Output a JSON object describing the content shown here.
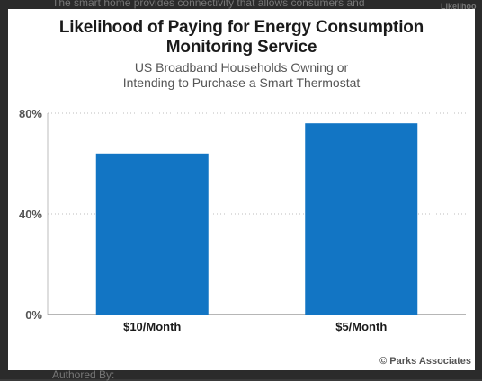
{
  "background": {
    "top_text": "The smart home provides connectivity that allows consumers and",
    "right_text": "Likelihoo",
    "bottom_text": "Authored By:"
  },
  "chart": {
    "title_line1": "Likelihood of Paying for Energy Consumption",
    "title_line2": "Monitoring Service",
    "subtitle_line1": "US Broadband Households Owning or",
    "subtitle_line2": "Intending to Purchase a Smart Thermostat",
    "credit": "© Parks Associates",
    "bar_color": "#1275c4"
  },
  "chart_data": {
    "type": "bar",
    "categories": [
      "$10/Month",
      "$5/Month"
    ],
    "values": [
      64,
      76
    ],
    "ylim": [
      0,
      80
    ],
    "yticks": [
      0,
      40,
      80
    ],
    "ytick_labels": [
      "0%",
      "40%",
      "80%"
    ],
    "title": "Likelihood of Paying for Energy Consumption Monitoring Service",
    "subtitle": "US Broadband Households Owning or Intending to Purchase a Smart Thermostat",
    "xlabel": "",
    "ylabel": "",
    "grid": true
  }
}
